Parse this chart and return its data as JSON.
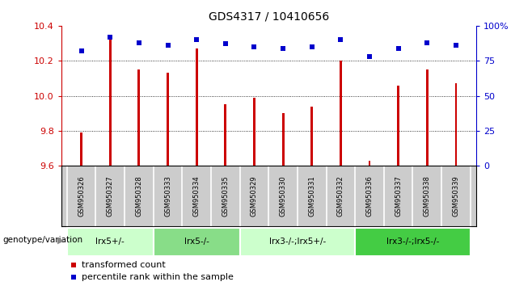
{
  "title": "GDS4317 / 10410656",
  "samples": [
    "GSM950326",
    "GSM950327",
    "GSM950328",
    "GSM950333",
    "GSM950334",
    "GSM950335",
    "GSM950329",
    "GSM950330",
    "GSM950331",
    "GSM950332",
    "GSM950336",
    "GSM950337",
    "GSM950338",
    "GSM950339"
  ],
  "red_values": [
    9.79,
    10.32,
    10.15,
    10.13,
    10.27,
    9.95,
    9.99,
    9.9,
    9.94,
    10.2,
    9.63,
    10.06,
    10.15,
    10.07
  ],
  "blue_values": [
    82,
    92,
    88,
    86,
    90,
    87,
    85,
    84,
    85,
    90,
    78,
    84,
    88,
    86
  ],
  "ylim_left": [
    9.6,
    10.4
  ],
  "ylim_right": [
    0,
    100
  ],
  "yticks_left": [
    9.6,
    9.8,
    10.0,
    10.2,
    10.4
  ],
  "yticks_right": [
    0,
    25,
    50,
    75,
    100
  ],
  "groups": [
    {
      "label": "lrx5+/-",
      "start": 0,
      "end": 3,
      "color": "#ccffcc"
    },
    {
      "label": "lrx5-/-",
      "start": 3,
      "end": 6,
      "color": "#88dd88"
    },
    {
      "label": "lrx3-/-;lrx5+/-",
      "start": 6,
      "end": 10,
      "color": "#ccffcc"
    },
    {
      "label": "lrx3-/-;lrx5-/-",
      "start": 10,
      "end": 14,
      "color": "#44cc44"
    }
  ],
  "bar_color": "#cc0000",
  "marker_color": "#0000cc",
  "grid_color": "#000000",
  "left_axis_color": "#cc0000",
  "right_axis_color": "#0000cc",
  "bg_color": "#ffffff",
  "bar_width": 0.08,
  "label_bg_color": "#cccccc",
  "legend_items": [
    "transformed count",
    "percentile rank within the sample"
  ]
}
